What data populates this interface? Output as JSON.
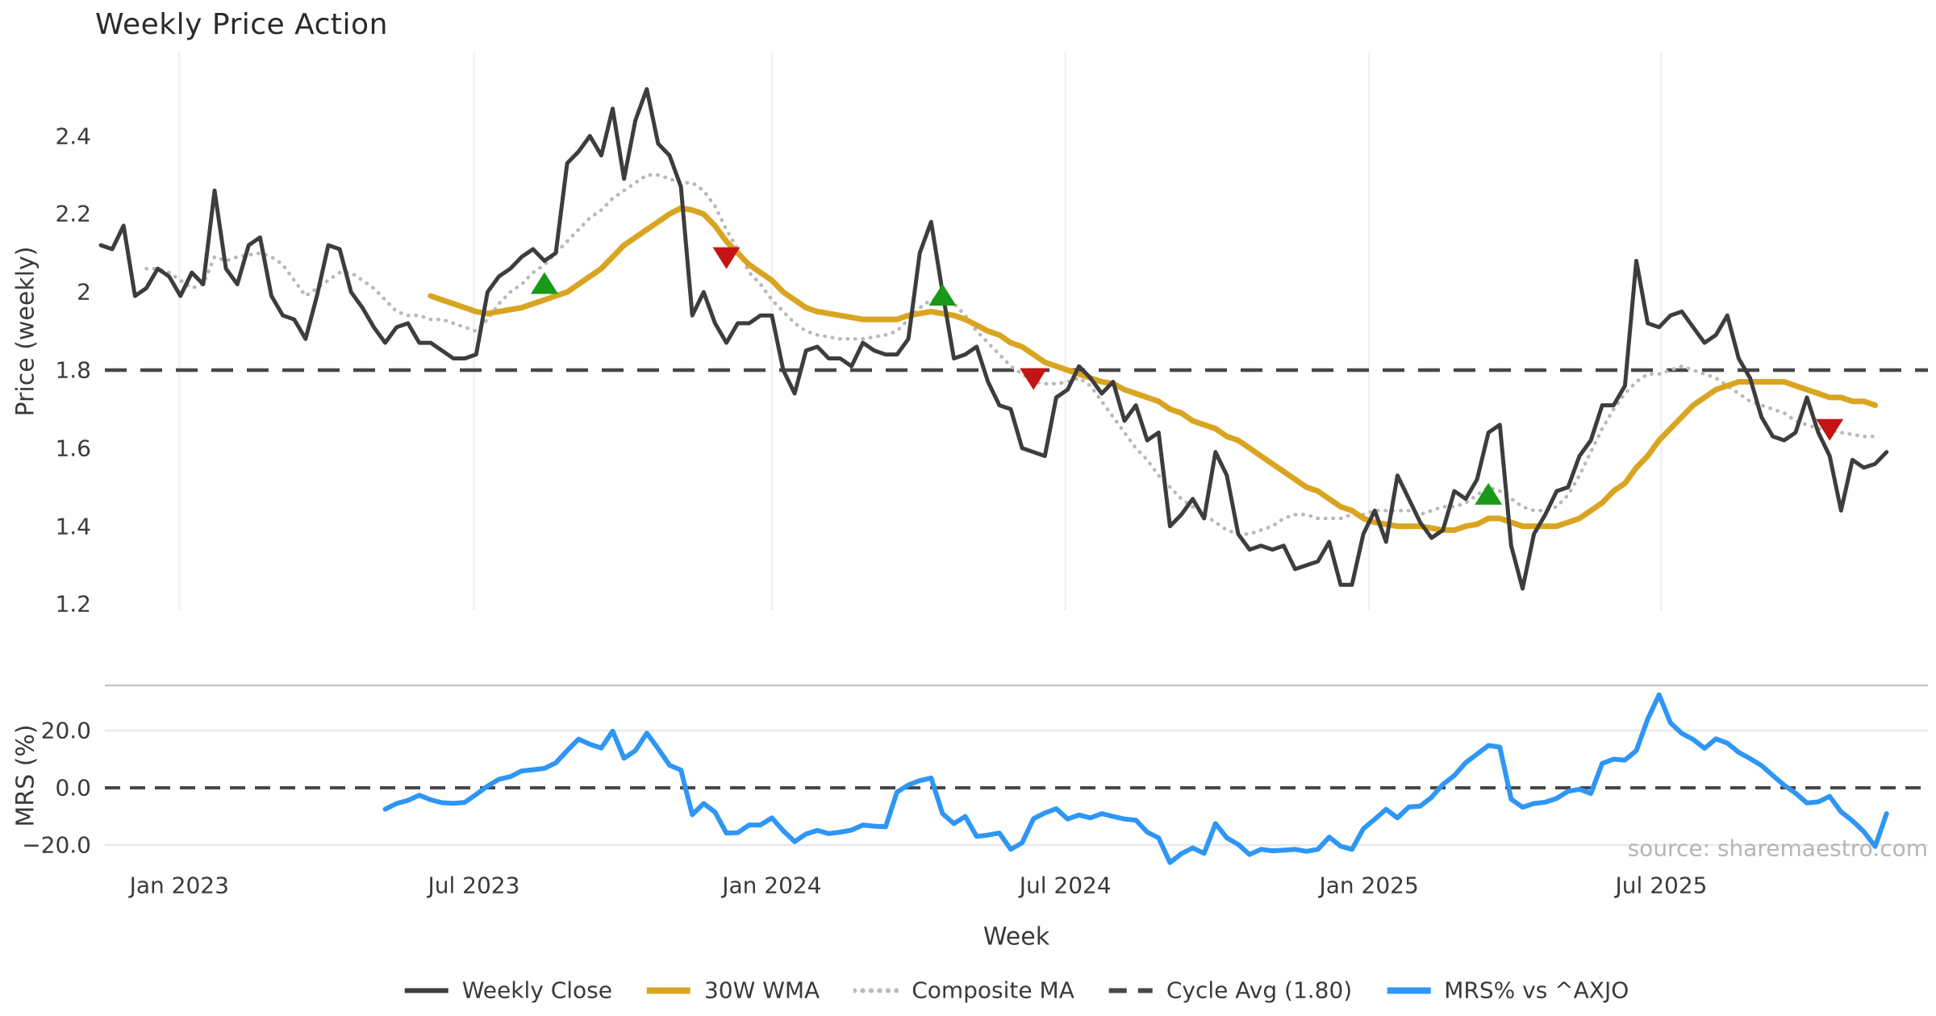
{
  "title": "Weekly Price Action",
  "source_note": "source: sharemaestro.com",
  "x_axis": {
    "label": "Week",
    "ticks": [
      {
        "week": 6.9,
        "label": "Jan 2023"
      },
      {
        "week": 32.8,
        "label": "Jul 2023"
      },
      {
        "week": 59.0,
        "label": "Jan 2024"
      },
      {
        "week": 84.8,
        "label": "Jul 2024"
      },
      {
        "week": 111.5,
        "label": "Jan 2025"
      },
      {
        "week": 137.2,
        "label": "Jul 2025"
      }
    ]
  },
  "legend": [
    {
      "label": "Weekly Close",
      "swatch": "solid",
      "color_key": "weekly_close"
    },
    {
      "label": "30W WMA",
      "swatch": "solid",
      "color_key": "wma"
    },
    {
      "label": "Composite MA",
      "swatch": "dotted",
      "color_key": "composite"
    },
    {
      "label": "Cycle Avg (1.80)",
      "swatch": "dashed",
      "color_key": "cycle"
    },
    {
      "label": "MRS% vs ^AXJO",
      "swatch": "solid",
      "color_key": "mrs"
    }
  ],
  "colors": {
    "weekly_close": "#3d3d3d",
    "wma": "#d9a521",
    "composite": "#b9b9b9",
    "cycle": "#474747",
    "mrs": "#2e96f5",
    "buy_marker": "#189a18",
    "sell_marker": "#c41414",
    "gridline": "#f0f0f2",
    "mrs_gridline": "#e9e9ec",
    "spine": "#c6c6c6",
    "tick_text": "#3a3a3a",
    "title_text": "#2b2b2b",
    "source_text": "#b5b5b5"
  },
  "chart_data": [
    {
      "type": "line",
      "panel": "price",
      "ylabel": "Price (weekly)",
      "ylim": [
        1.185,
        2.615
      ],
      "yticks": [
        {
          "v": 2.4,
          "label": "2.4"
        },
        {
          "v": 2.2,
          "label": "2.2"
        },
        {
          "v": 2.0,
          "label": "2"
        },
        {
          "v": 1.8,
          "label": "1.8"
        },
        {
          "v": 1.6,
          "label": "1.6"
        },
        {
          "v": 1.4,
          "label": "1.4"
        },
        {
          "v": 1.2,
          "label": "1.2"
        }
      ],
      "cycle_avg": 1.8,
      "series": [
        {
          "name": "Weekly Close",
          "start_week": 0,
          "step_weeks": 1,
          "values": [
            2.12,
            2.11,
            2.17,
            1.99,
            2.01,
            2.06,
            2.04,
            1.99,
            2.05,
            2.02,
            2.26,
            2.06,
            2.02,
            2.12,
            2.14,
            1.99,
            1.94,
            1.93,
            1.88,
            1.99,
            2.12,
            2.11,
            2.0,
            1.96,
            1.91,
            1.87,
            1.91,
            1.92,
            1.87,
            1.87,
            1.85,
            1.83,
            1.83,
            1.84,
            2.0,
            2.04,
            2.06,
            2.09,
            2.11,
            2.08,
            2.1,
            2.33,
            2.36,
            2.4,
            2.35,
            2.47,
            2.29,
            2.44,
            2.52,
            2.38,
            2.35,
            2.27,
            1.94,
            2.0,
            1.92,
            1.87,
            1.92,
            1.92,
            1.94,
            1.94,
            1.8,
            1.74,
            1.85,
            1.86,
            1.83,
            1.83,
            1.81,
            1.87,
            1.85,
            1.84,
            1.84,
            1.88,
            2.1,
            2.18,
            2.0,
            1.83,
            1.84,
            1.86,
            1.77,
            1.71,
            1.7,
            1.6,
            1.59,
            1.58,
            1.73,
            1.75,
            1.81,
            1.78,
            1.74,
            1.77,
            1.67,
            1.71,
            1.62,
            1.64,
            1.4,
            1.43,
            1.47,
            1.42,
            1.59,
            1.53,
            1.38,
            1.34,
            1.35,
            1.34,
            1.35,
            1.29,
            1.3,
            1.31,
            1.36,
            1.25,
            1.25,
            1.38,
            1.44,
            1.36,
            1.53,
            1.47,
            1.41,
            1.37,
            1.39,
            1.49,
            1.47,
            1.52,
            1.64,
            1.66,
            1.35,
            1.24,
            1.38,
            1.43,
            1.49,
            1.5,
            1.58,
            1.62,
            1.71,
            1.71,
            1.76,
            2.08,
            1.92,
            1.91,
            1.94,
            1.95,
            1.91,
            1.87,
            1.89,
            1.94,
            1.83,
            1.78,
            1.68,
            1.63,
            1.62,
            1.64,
            1.73,
            1.64,
            1.58,
            1.44,
            1.57,
            1.55,
            1.56,
            1.59
          ]
        },
        {
          "name": "30W WMA",
          "start_week": 29,
          "step_weeks": 1,
          "values": [
            1.99,
            1.98,
            1.97,
            1.96,
            1.95,
            1.945,
            1.95,
            1.955,
            1.96,
            1.97,
            1.98,
            1.99,
            2.0,
            2.02,
            2.04,
            2.06,
            2.09,
            2.12,
            2.14,
            2.16,
            2.18,
            2.2,
            2.215,
            2.21,
            2.2,
            2.17,
            2.13,
            2.1,
            2.07,
            2.05,
            2.03,
            2.0,
            1.98,
            1.96,
            1.95,
            1.945,
            1.94,
            1.935,
            1.93,
            1.93,
            1.93,
            1.93,
            1.94,
            1.945,
            1.95,
            1.945,
            1.94,
            1.93,
            1.915,
            1.9,
            1.89,
            1.87,
            1.86,
            1.84,
            1.82,
            1.81,
            1.8,
            1.79,
            1.78,
            1.77,
            1.765,
            1.75,
            1.74,
            1.73,
            1.72,
            1.7,
            1.69,
            1.67,
            1.66,
            1.65,
            1.63,
            1.62,
            1.6,
            1.58,
            1.56,
            1.54,
            1.52,
            1.5,
            1.49,
            1.47,
            1.45,
            1.44,
            1.42,
            1.41,
            1.405,
            1.4,
            1.4,
            1.4,
            1.395,
            1.39,
            1.39,
            1.4,
            1.405,
            1.42,
            1.42,
            1.41,
            1.4,
            1.4,
            1.4,
            1.4,
            1.41,
            1.42,
            1.44,
            1.46,
            1.49,
            1.51,
            1.55,
            1.58,
            1.62,
            1.65,
            1.68,
            1.71,
            1.73,
            1.75,
            1.76,
            1.77,
            1.77,
            1.77,
            1.77,
            1.77,
            1.76,
            1.75,
            1.74,
            1.73,
            1.73,
            1.72,
            1.72,
            1.71
          ]
        },
        {
          "name": "Composite MA",
          "start_week": 4,
          "step_weeks": 1,
          "values": [
            2.06,
            2.06,
            2.05,
            2.03,
            2.01,
            2.02,
            2.09,
            2.08,
            2.09,
            2.095,
            2.1,
            2.09,
            2.07,
            2.03,
            1.99,
            2.01,
            2.03,
            2.05,
            2.05,
            2.03,
            2.01,
            1.98,
            1.95,
            1.94,
            1.94,
            1.93,
            1.93,
            1.92,
            1.91,
            1.9,
            1.93,
            1.97,
            2.0,
            2.02,
            2.05,
            2.07,
            2.1,
            2.13,
            2.16,
            2.19,
            2.21,
            2.24,
            2.26,
            2.28,
            2.3,
            2.3,
            2.29,
            2.28,
            2.28,
            2.26,
            2.22,
            2.16,
            2.11,
            2.05,
            2.02,
            1.98,
            1.95,
            1.92,
            1.9,
            1.89,
            1.885,
            1.88,
            1.88,
            1.88,
            1.885,
            1.89,
            1.9,
            1.93,
            1.96,
            1.98,
            1.98,
            1.97,
            1.94,
            1.9,
            1.87,
            1.84,
            1.81,
            1.79,
            1.77,
            1.765,
            1.765,
            1.77,
            1.78,
            1.76,
            1.72,
            1.68,
            1.64,
            1.6,
            1.57,
            1.53,
            1.5,
            1.47,
            1.45,
            1.43,
            1.41,
            1.39,
            1.38,
            1.38,
            1.39,
            1.4,
            1.42,
            1.43,
            1.43,
            1.42,
            1.42,
            1.42,
            1.43,
            1.43,
            1.44,
            1.44,
            1.44,
            1.44,
            1.43,
            1.44,
            1.45,
            1.45,
            1.46,
            1.48,
            1.5,
            1.49,
            1.47,
            1.45,
            1.44,
            1.44,
            1.45,
            1.48,
            1.53,
            1.59,
            1.65,
            1.7,
            1.74,
            1.77,
            1.79,
            1.79,
            1.8,
            1.81,
            1.8,
            1.79,
            1.78,
            1.76,
            1.74,
            1.72,
            1.71,
            1.7,
            1.69,
            1.67,
            1.66,
            1.65,
            1.645,
            1.64,
            1.635,
            1.63,
            1.63
          ]
        }
      ],
      "markers": {
        "buy_signals": [
          {
            "week": 39,
            "price": 2.02
          },
          {
            "week": 74,
            "price": 1.99
          },
          {
            "week": 122,
            "price": 1.48
          }
        ],
        "sell_signals": [
          {
            "week": 55,
            "price": 2.09
          },
          {
            "week": 82,
            "price": 1.78
          },
          {
            "week": 152,
            "price": 1.65
          }
        ]
      }
    },
    {
      "type": "line",
      "panel": "mrs",
      "ylabel": "MRS (%)",
      "ylim": [
        -27.6,
        35.8
      ],
      "yticks": [
        {
          "v": 20,
          "label": "20.0"
        },
        {
          "v": 0,
          "label": "0.0"
        },
        {
          "v": -20,
          "label": "−20.0"
        }
      ],
      "zero_line_dashed": true,
      "gridlines_at": [
        20,
        -20
      ],
      "series": [
        {
          "name": "MRS% vs ^AXJO",
          "start_week": 25,
          "step_weeks": 1,
          "values": [
            -7.5,
            -5.5,
            -4.4,
            -2.6,
            -4.2,
            -5.2,
            -5.4,
            -5.1,
            -2.3,
            0.6,
            3.0,
            3.9,
            5.9,
            6.3,
            6.8,
            8.7,
            13.0,
            17.0,
            15.2,
            13.9,
            19.8,
            10.3,
            13.0,
            19.1,
            13.7,
            7.9,
            6.2,
            -9.4,
            -5.5,
            -8.5,
            -15.8,
            -15.7,
            -13.0,
            -13.0,
            -10.5,
            -15.0,
            -18.8,
            -16.1,
            -14.9,
            -16.0,
            -15.5,
            -14.8,
            -13.0,
            -13.4,
            -13.6,
            -1.5,
            1.0,
            2.5,
            3.4,
            -9.0,
            -12.5,
            -10.0,
            -17.0,
            -16.5,
            -15.8,
            -21.5,
            -19.2,
            -10.8,
            -8.8,
            -7.3,
            -10.9,
            -9.5,
            -10.5,
            -9.0,
            -10.0,
            -10.9,
            -11.3,
            -15.5,
            -17.5,
            -26.1,
            -23.0,
            -21.0,
            -22.9,
            -12.5,
            -17.5,
            -19.8,
            -23.3,
            -21.5,
            -22.0,
            -21.8,
            -21.5,
            -22.2,
            -21.5,
            -17.2,
            -20.4,
            -21.5,
            -14.3,
            -11.0,
            -7.5,
            -10.5,
            -6.7,
            -6.4,
            -3.3,
            1.2,
            4.3,
            8.8,
            11.8,
            14.8,
            14.2,
            -4.0,
            -6.8,
            -5.5,
            -5.0,
            -3.7,
            -1.2,
            -0.5,
            -2.0,
            8.5,
            10.0,
            9.7,
            13.0,
            24.0,
            32.5,
            22.7,
            19.0,
            16.9,
            13.8,
            17.1,
            15.6,
            12.4,
            10.2,
            7.8,
            4.3,
            0.9,
            -1.9,
            -5.3,
            -4.9,
            -3.0,
            -8.4,
            -11.5,
            -15.3,
            -20.5,
            -9.0
          ]
        }
      ]
    }
  ]
}
